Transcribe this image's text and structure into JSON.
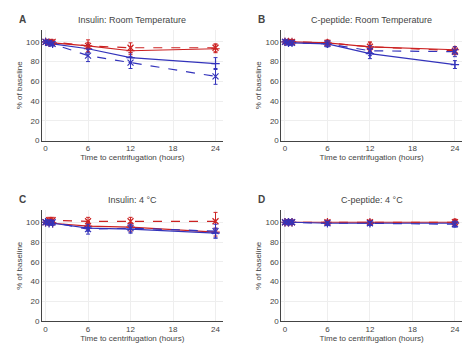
{
  "chart_data": [
    {
      "type": "line",
      "title": "Insulin: Room Temperature",
      "annotations": [
        "A"
      ],
      "xlabel": "Time to centrifugation (hours)",
      "ylabel": "% of baseline",
      "x": [
        0,
        0.5,
        1,
        6,
        12,
        24
      ],
      "xlim": [
        -0.5,
        25
      ],
      "xticks": [
        0,
        6,
        12,
        18,
        24
      ],
      "ylim": [
        0,
        112
      ],
      "yticks": [
        0,
        20,
        40,
        60,
        80,
        100
      ],
      "series": [
        {
          "color": "#cc2222",
          "line_style": "solid",
          "marker": "plus",
          "values": [
            100,
            99,
            99,
            96,
            91,
            93
          ],
          "yerr": [
            1.5,
            2,
            2,
            3,
            4,
            4
          ]
        },
        {
          "color": "#3333bb",
          "line_style": "solid",
          "marker": "plus",
          "values": [
            100,
            99,
            98,
            93,
            84,
            78
          ],
          "yerr": [
            1.5,
            2,
            2,
            4,
            5,
            6
          ]
        },
        {
          "color": "#cc2222",
          "line_style": "dashed",
          "marker": "x",
          "values": [
            100,
            100,
            100,
            96,
            94,
            94
          ],
          "yerr": [
            1.5,
            2,
            2,
            6,
            5,
            4
          ]
        },
        {
          "color": "#3333bb",
          "line_style": "dashed",
          "marker": "x",
          "values": [
            100,
            99,
            98,
            86,
            79,
            65
          ],
          "yerr": [
            1.5,
            2,
            2,
            6,
            6,
            8
          ]
        }
      ]
    },
    {
      "type": "line",
      "title": "C-peptide: Room Temperature",
      "annotations": [
        "B"
      ],
      "xlabel": "Time to centrifugation (hours)",
      "ylabel": "% of baseline",
      "x": [
        0,
        0.5,
        1,
        6,
        12,
        24
      ],
      "xlim": [
        -0.5,
        25
      ],
      "xticks": [
        0,
        6,
        12,
        18,
        24
      ],
      "ylim": [
        0,
        112
      ],
      "yticks": [
        0,
        20,
        40,
        60,
        80,
        100
      ],
      "series": [
        {
          "color": "#cc2222",
          "line_style": "solid",
          "marker": "plus",
          "values": [
            100,
            100,
            100,
            99,
            95,
            92
          ],
          "yerr": [
            1.5,
            2,
            2,
            2,
            4,
            3
          ]
        },
        {
          "color": "#3333bb",
          "line_style": "solid",
          "marker": "plus",
          "values": [
            100,
            99,
            99,
            98,
            88,
            77
          ],
          "yerr": [
            1.5,
            2,
            2,
            3,
            5,
            4
          ]
        },
        {
          "color": "#cc2222",
          "line_style": "dashed",
          "marker": "x",
          "values": [
            100,
            100,
            100,
            99,
            95,
            91
          ],
          "yerr": [
            1.5,
            2,
            2,
            3,
            5,
            4
          ]
        },
        {
          "color": "#3333bb",
          "line_style": "dashed",
          "marker": "x",
          "values": [
            100,
            99,
            99,
            98,
            91,
            90
          ],
          "yerr": [
            2,
            2,
            2,
            3,
            5,
            5
          ]
        }
      ]
    },
    {
      "type": "line",
      "title": "Insulin: 4 °C",
      "annotations": [
        "C"
      ],
      "xlabel": "Time to centrifugation (hours)",
      "ylabel": "% of baseline",
      "x": [
        0,
        0.5,
        1,
        6,
        12,
        24
      ],
      "xlim": [
        -0.5,
        25
      ],
      "xticks": [
        0,
        6,
        12,
        18,
        24
      ],
      "ylim": [
        0,
        112
      ],
      "yticks": [
        0,
        20,
        40,
        60,
        80,
        100
      ],
      "series": [
        {
          "color": "#cc2222",
          "line_style": "solid",
          "marker": "plus",
          "values": [
            100,
            100,
            99,
            96,
            95,
            90
          ],
          "yerr": [
            1.5,
            2,
            2,
            3,
            4,
            4
          ]
        },
        {
          "color": "#3333bb",
          "line_style": "solid",
          "marker": "plus",
          "values": [
            100,
            99,
            99,
            94,
            93,
            89
          ],
          "yerr": [
            1.5,
            2,
            2,
            3,
            4,
            5
          ]
        },
        {
          "color": "#cc2222",
          "line_style": "dashed",
          "marker": "x",
          "values": [
            100,
            102,
            102,
            101,
            101,
            101
          ],
          "yerr": [
            1.5,
            3,
            3,
            4,
            4,
            9
          ]
        },
        {
          "color": "#3333bb",
          "line_style": "dashed",
          "marker": "x",
          "values": [
            100,
            100,
            100,
            93,
            94,
            91
          ],
          "yerr": [
            1.5,
            2,
            2,
            5,
            4,
            7
          ]
        }
      ]
    },
    {
      "type": "line",
      "title": "C-peptide: 4 °C",
      "annotations": [
        "D"
      ],
      "xlabel": "Time to centrifugation (hours)",
      "ylabel": "% of baseline",
      "x": [
        0,
        0.5,
        1,
        6,
        12,
        24
      ],
      "xlim": [
        -0.5,
        25
      ],
      "xticks": [
        0,
        6,
        12,
        18,
        24
      ],
      "ylim": [
        0,
        112
      ],
      "yticks": [
        0,
        20,
        40,
        60,
        80,
        100
      ],
      "series": [
        {
          "color": "#cc2222",
          "line_style": "solid",
          "marker": "plus",
          "values": [
            100,
            100,
            100,
            100,
            100,
            100
          ],
          "yerr": [
            1.5,
            2,
            2,
            2,
            2,
            3
          ]
        },
        {
          "color": "#3333bb",
          "line_style": "solid",
          "marker": "plus",
          "values": [
            100,
            100,
            100,
            99,
            99,
            99
          ],
          "yerr": [
            1.5,
            2,
            2,
            2,
            2,
            3
          ]
        },
        {
          "color": "#cc2222",
          "line_style": "dashed",
          "marker": "x",
          "values": [
            100,
            100,
            100,
            100,
            100,
            100
          ],
          "yerr": [
            1.5,
            2,
            2,
            2,
            2,
            3
          ]
        },
        {
          "color": "#3333bb",
          "line_style": "dashed",
          "marker": "x",
          "values": [
            100,
            100,
            100,
            99,
            99,
            98
          ],
          "yerr": [
            1.5,
            2,
            2,
            2,
            2,
            3
          ]
        }
      ]
    }
  ]
}
